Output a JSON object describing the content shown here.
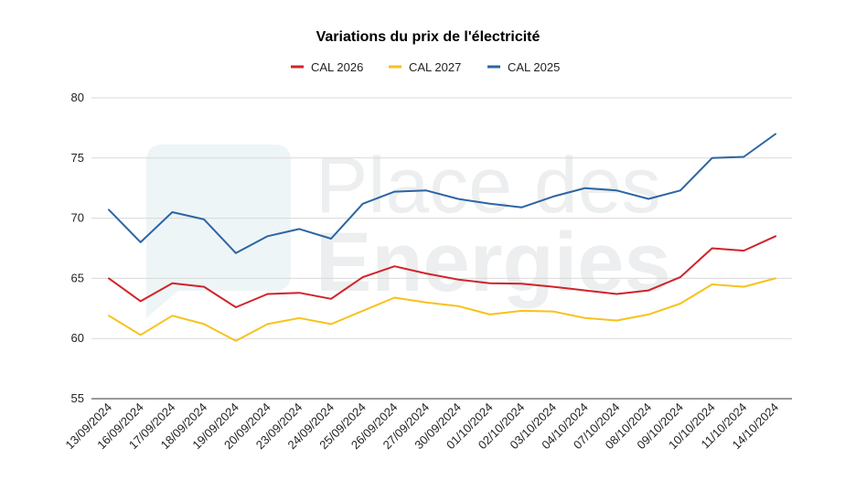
{
  "chart_data": {
    "type": "line",
    "title": "Variations du prix de l'électricité",
    "xlabel": "",
    "ylabel": "",
    "ylim": [
      55,
      80
    ],
    "yticks": [
      55,
      60,
      65,
      70,
      75,
      80
    ],
    "grid": true,
    "legend_position": "top",
    "categories": [
      "13/09/2024",
      "16/09/2024",
      "17/09/2024",
      "18/09/2024",
      "19/09/2024",
      "20/09/2024",
      "23/09/2024",
      "24/09/2024",
      "25/09/2024",
      "26/09/2024",
      "27/09/2024",
      "30/09/2024",
      "01/10/2024",
      "02/10/2024",
      "03/10/2024",
      "04/10/2024",
      "07/10/2024",
      "08/10/2024",
      "09/10/2024",
      "10/10/2024",
      "11/10/2024",
      "14/10/2024"
    ],
    "series": [
      {
        "name": "CAL 2026",
        "color": "#d0232a",
        "values": [
          65.0,
          63.1,
          64.6,
          64.3,
          62.6,
          63.7,
          63.8,
          63.3,
          65.1,
          66.0,
          65.4,
          64.9,
          64.6,
          64.55,
          64.3,
          64.0,
          63.7,
          64.0,
          65.1,
          67.5,
          67.3,
          68.5
        ]
      },
      {
        "name": "CAL 2027",
        "color": "#f7c21b",
        "values": [
          61.9,
          60.3,
          61.9,
          61.2,
          59.8,
          61.2,
          61.7,
          61.2,
          62.3,
          63.4,
          63.0,
          62.7,
          62.0,
          62.3,
          62.25,
          61.7,
          61.5,
          62.0,
          62.9,
          64.5,
          64.3,
          65.0
        ]
      },
      {
        "name": "CAL 2025",
        "color": "#2c65a3",
        "values": [
          70.7,
          68.0,
          70.5,
          69.9,
          67.1,
          68.5,
          69.1,
          68.3,
          71.2,
          72.2,
          72.3,
          71.6,
          71.2,
          70.9,
          71.8,
          72.5,
          72.3,
          71.6,
          72.3,
          75.0,
          75.1,
          77.0
        ]
      }
    ]
  },
  "watermark": {
    "line1": "Place des",
    "line2": "Energies"
  }
}
